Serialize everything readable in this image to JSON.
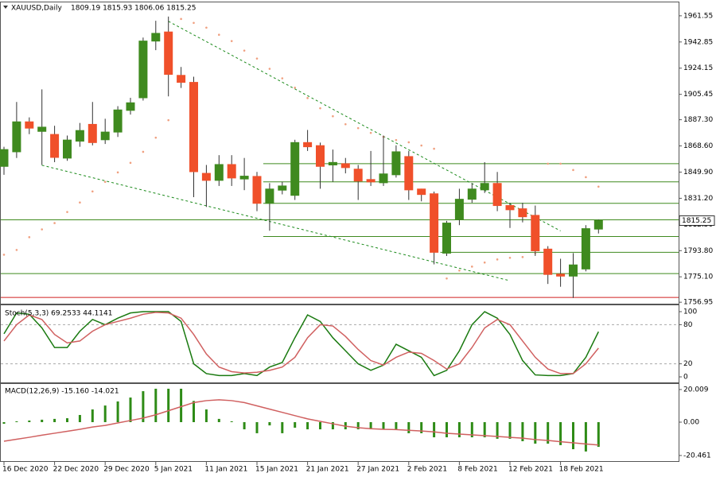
{
  "chart_data": [
    {
      "type": "candlestick",
      "title": "XAUUSD,Daily",
      "ohlc_text": "1809.19 1815.93 1806.06 1815.25",
      "categories": [
        "16 Dec 2020",
        null,
        null,
        null,
        "22 Dec 2020",
        null,
        null,
        null,
        "29 Dec 2020",
        null,
        null,
        null,
        "5 Jan 2021",
        null,
        null,
        null,
        "11 Jan 2021",
        null,
        null,
        null,
        "15 Jan 2021",
        null,
        null,
        null,
        "21 Jan 2021",
        null,
        null,
        null,
        "27 Jan 2021",
        null,
        null,
        null,
        "2 Feb 2021",
        null,
        null,
        null,
        "8 Feb 2021",
        null,
        null,
        null,
        "12 Feb 2021",
        null,
        null,
        null,
        "18 Feb 2021",
        null,
        null,
        null
      ],
      "open": [
        1854,
        1864.4,
        1885.8,
        1879,
        1876.8,
        1859.9,
        1872,
        1884,
        1873,
        1878.5,
        1894,
        1903,
        1943.5,
        1950,
        1919,
        1914,
        1849,
        1844,
        1855.3,
        1845,
        1846.8,
        1827.6,
        1837,
        1833.3,
        1871,
        1868.8,
        1855,
        1855.9,
        1852,
        1844.6,
        1842.3,
        1848,
        1861,
        1837.8,
        1834.4,
        1792,
        1816,
        1830.5,
        1837.2,
        1841.8,
        1826,
        1823.7,
        1819,
        1794.9,
        1777,
        1775.6,
        1780.7,
        1809.19
      ],
      "high": [
        1868,
        1900,
        1889,
        1909,
        1883,
        1876,
        1885,
        1900,
        1888,
        1897,
        1903,
        1946,
        1958,
        1961,
        1925,
        1918,
        1855,
        1862,
        1862,
        1860,
        1850,
        1842,
        1843,
        1873,
        1880,
        1871,
        1866,
        1860,
        1855,
        1865,
        1876,
        1869,
        1865,
        1838,
        1836,
        1815,
        1838,
        1842,
        1857,
        1850,
        1828,
        1828,
        1826,
        1797,
        1788,
        1792,
        1812,
        1815.93
      ],
      "low": [
        1848,
        1860,
        1877,
        1855,
        1857,
        1858,
        1868,
        1869,
        1870,
        1875,
        1891,
        1901,
        1937,
        1904,
        1910,
        1832,
        1825,
        1840,
        1840,
        1837,
        1822,
        1808,
        1834,
        1830,
        1865,
        1838,
        1843,
        1849,
        1830,
        1840,
        1840,
        1846,
        1830,
        1829,
        1784,
        1790,
        1812,
        1828,
        1835,
        1822,
        1810,
        1814,
        1790,
        1770,
        1768,
        1760,
        1779,
        1806.06
      ],
      "close": [
        1866,
        1885.8,
        1881.3,
        1882,
        1860.4,
        1872.8,
        1879.6,
        1871,
        1878.5,
        1894.3,
        1899.4,
        1943.5,
        1949,
        1919.7,
        1914,
        1850.2,
        1844,
        1855.3,
        1845.7,
        1847,
        1827.6,
        1837.8,
        1840,
        1871,
        1868,
        1854,
        1856.8,
        1853.1,
        1843.5,
        1842.9,
        1848.6,
        1864.4,
        1837.2,
        1833.9,
        1792.6,
        1813.5,
        1830.5,
        1837.8,
        1841.8,
        1826,
        1823,
        1818,
        1793.7,
        1776.8,
        1775.6,
        1783.6,
        1809.5,
        1815.25
      ],
      "up_color": "#3f8a1f",
      "down_color": "#f0502a",
      "sar": {
        "color": "#f0a080",
        "values": [
          1790.9,
          1794.3,
          1803.4,
          1809.0,
          1813.5,
          1821.4,
          1828.2,
          1836.1,
          1842.9,
          1849.7,
          1856.5,
          1864.4,
          1874.5,
          1887.0,
          1959.3,
          1956.5,
          1953.1,
          1948.0,
          1943.5,
          1936.7,
          1931.0,
          1923.7,
          1916.9,
          1910.2,
          1902.8,
          1895.5,
          1889.8,
          1884.1,
          1881.3,
          1877.9,
          1875.1,
          1872.8,
          1871.2,
          1868.9,
          1866.6,
          1773.9,
          1779.6,
          1782.4,
          1785.3,
          1787.5,
          1788.7,
          1789.2,
          1792.1,
          1855.9,
          1855.9,
          1851.4,
          1846.3,
          1839.5
        ]
      },
      "levels": [
        {
          "price": 1855.9,
          "start": 21,
          "color": "#3f8a1f"
        },
        {
          "price": 1842.9,
          "start": 21,
          "color": "#3f8a1f"
        },
        {
          "price": 1827.6,
          "start": 21,
          "color": "#3f8a1f"
        },
        {
          "price": 1815.8,
          "start": 0,
          "color": "#3f8a1f"
        },
        {
          "price": 1803.9,
          "start": 21,
          "color": "#3f8a1f"
        },
        {
          "price": 1792.6,
          "start": 35,
          "color": "#3f8a1f"
        },
        {
          "price": 1777.4,
          "start": 0,
          "color": "#3f8a1f"
        },
        {
          "price": 1760.4,
          "start": 0,
          "color": "#d02020"
        }
      ],
      "trend_lines": [
        {
          "x": [
            13,
            44
          ],
          "y": [
            1957.6,
            1807.9
          ]
        },
        {
          "x": [
            3,
            40
          ],
          "y": [
            1854.8,
            1772.3
          ]
        }
      ],
      "last_price": 1815.25,
      "ylim": [
        1755.9,
        1971.7
      ],
      "yticks": [
        1961.55,
        1942.85,
        1924.15,
        1905.45,
        {
          "value": 1887.3,
          "label": "1887.30"
        },
        {
          "value": 1868.6,
          "label": "1868.60"
        },
        {
          "value": 1849.9,
          "label": "1849.90"
        },
        {
          "value": 1831.2,
          "label": "1831.20"
        },
        {
          "value": 1812.5,
          "label": "1812.50"
        },
        {
          "value": 1793.8,
          "label": "1793.80"
        },
        {
          "value": 1775.1,
          "label": "1775.10"
        },
        1756.95
      ]
    },
    {
      "type": "line",
      "title": "Stoch(5,3,3) 69.2533 44.1141",
      "series": [
        {
          "color": "#1a7a10",
          "values": [
            66,
            98,
            96,
            75,
            45,
            45,
            70,
            88,
            80,
            90,
            98,
            100,
            100,
            100,
            85,
            20,
            5,
            2,
            2,
            5,
            2,
            15,
            22,
            60,
            95,
            85,
            60,
            40,
            20,
            10,
            18,
            50,
            40,
            30,
            2,
            10,
            40,
            80,
            100,
            90,
            65,
            25,
            3,
            2,
            2,
            5,
            30,
            69.2533
          ]
        },
        {
          "color": "#d06060",
          "values": [
            55,
            80,
            95,
            88,
            65,
            52,
            55,
            70,
            80,
            85,
            90,
            96,
            99,
            98,
            90,
            65,
            35,
            15,
            8,
            6,
            7,
            10,
            15,
            30,
            60,
            80,
            78,
            62,
            42,
            25,
            18,
            30,
            38,
            36,
            25,
            12,
            20,
            45,
            75,
            88,
            80,
            55,
            30,
            12,
            5,
            5,
            20,
            44.1141
          ]
        }
      ],
      "levels": [
        80,
        20
      ],
      "ylim": [
        -8.5,
        111
      ],
      "yticks": [
        100,
        80,
        20,
        0
      ]
    },
    {
      "type": "macd",
      "title": "MACD(12,26,9) -15.160 -14.021",
      "histogram": {
        "color": "#2e8b16",
        "values": [
          -1,
          0.5,
          1,
          1.5,
          2,
          2.4,
          4.4,
          7.8,
          10.2,
          12.7,
          15.1,
          19,
          20.5,
          20.5,
          20.5,
          13,
          7.8,
          2,
          0.5,
          -4.4,
          -6.8,
          -2,
          -6.8,
          -3.4,
          -4.4,
          -4.4,
          -4.4,
          -4.4,
          -4.4,
          -4.4,
          -4.4,
          -4.4,
          -6.8,
          -6.8,
          -9.3,
          -9.3,
          -9.3,
          -9.3,
          -9.3,
          -10.2,
          -10.2,
          -11.7,
          -13.2,
          -13.2,
          -14.1,
          -16.6,
          -18,
          -15.16
        ]
      },
      "signal": {
        "color": "#d06060",
        "values": [
          -11.7,
          -10.5,
          -9.3,
          -8,
          -6.8,
          -5.6,
          -4.4,
          -3,
          -2,
          -0.5,
          1,
          2.5,
          4.5,
          7,
          9.5,
          12,
          13.2,
          13.7,
          13.2,
          12,
          10,
          8,
          6,
          4,
          2,
          0.5,
          -1,
          -2.5,
          -3.4,
          -4,
          -4.4,
          -4.6,
          -5,
          -5.4,
          -6,
          -6.8,
          -7.3,
          -7.8,
          -8.3,
          -8.8,
          -9.3,
          -9.8,
          -10.7,
          -11.2,
          -12,
          -12.7,
          -13.4,
          -14.021
        ]
      },
      "ylim": [
        -23.9,
        23.9
      ],
      "yticks": [
        20.009,
        {
          "value": 0,
          "label": "0.00"
        },
        -20.461
      ]
    }
  ]
}
